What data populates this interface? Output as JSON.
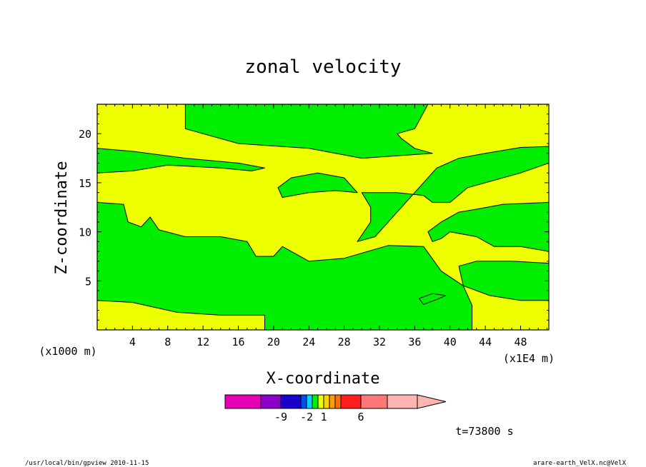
{
  "chart_data": {
    "type": "contour",
    "title": "zonal velocity",
    "xlabel": "X-coordinate",
    "ylabel": "Z-coordinate",
    "x_unit_note": "(x1E4 m)",
    "y_unit_note": "(x1000 m)",
    "xlim": [
      0,
      51.2
    ],
    "ylim": [
      0,
      23
    ],
    "x_ticks": [
      4,
      8,
      12,
      16,
      20,
      24,
      28,
      32,
      36,
      40,
      44,
      48
    ],
    "y_ticks": [
      5,
      10,
      15,
      20
    ],
    "colors": {
      "green": "#00ee00",
      "yellow": "#eeff00",
      "frame": "#000000"
    },
    "regions": [
      {
        "fill": "green",
        "points": [
          [
            10,
            23
          ],
          [
            37.5,
            23
          ],
          [
            36,
            20.5
          ],
          [
            34,
            20
          ],
          [
            34.5,
            19.5
          ],
          [
            36,
            18.5
          ],
          [
            38,
            18
          ],
          [
            30,
            17.5
          ],
          [
            24,
            18.5
          ],
          [
            16,
            19
          ],
          [
            10,
            20.5
          ]
        ]
      },
      {
        "fill": "green",
        "points": [
          [
            0,
            18.5
          ],
          [
            4,
            18.2
          ],
          [
            10,
            17.5
          ],
          [
            16,
            17
          ],
          [
            19,
            16.5
          ],
          [
            17.5,
            16.2
          ],
          [
            14,
            16.5
          ],
          [
            8,
            16.8
          ],
          [
            4,
            16.2
          ],
          [
            0,
            16
          ]
        ]
      },
      {
        "fill": "green",
        "points": [
          [
            20.5,
            14.5
          ],
          [
            22,
            15.5
          ],
          [
            25,
            16
          ],
          [
            28,
            15.5
          ],
          [
            29.5,
            14
          ],
          [
            27,
            14.2
          ],
          [
            24,
            14
          ],
          [
            21,
            13.5
          ]
        ]
      },
      {
        "fill": "green",
        "points": [
          [
            0,
            13
          ],
          [
            3,
            12.8
          ],
          [
            3.5,
            11
          ],
          [
            5,
            10.5
          ],
          [
            6,
            11.5
          ],
          [
            7,
            10.2
          ],
          [
            10,
            9.5
          ],
          [
            14,
            9.5
          ],
          [
            17,
            9
          ],
          [
            18,
            7.5
          ],
          [
            20,
            7.5
          ],
          [
            21,
            8.5
          ],
          [
            24,
            7
          ],
          [
            28,
            7.3
          ],
          [
            33,
            8.6
          ],
          [
            37,
            8.5
          ],
          [
            39,
            6
          ],
          [
            41.5,
            4.5
          ],
          [
            42.5,
            2.5
          ],
          [
            42.5,
            0
          ],
          [
            19,
            0
          ],
          [
            19,
            1.5
          ],
          [
            14,
            1.5
          ],
          [
            9,
            1.8
          ],
          [
            4,
            2.8
          ],
          [
            0,
            3
          ]
        ]
      },
      {
        "fill": "green",
        "points": [
          [
            30,
            14
          ],
          [
            34,
            14
          ],
          [
            37,
            13.7
          ],
          [
            38,
            13
          ],
          [
            40,
            13
          ],
          [
            42,
            14.5
          ],
          [
            48,
            16
          ],
          [
            51.2,
            17
          ],
          [
            51.2,
            18.7
          ],
          [
            48,
            18.6
          ],
          [
            44,
            18
          ],
          [
            41,
            17.5
          ],
          [
            38.5,
            16.5
          ],
          [
            36.5,
            14.5
          ],
          [
            35.5,
            13.5
          ],
          [
            34,
            12
          ],
          [
            31.5,
            9.5
          ],
          [
            29.5,
            9
          ],
          [
            31,
            11
          ],
          [
            31,
            12.5
          ]
        ]
      },
      {
        "fill": "green",
        "points": [
          [
            37.5,
            10
          ],
          [
            39,
            11
          ],
          [
            41,
            12
          ],
          [
            43,
            12.3
          ],
          [
            46,
            12.8
          ],
          [
            51.2,
            13
          ],
          [
            51.2,
            8
          ],
          [
            48,
            8.5
          ],
          [
            45,
            8.5
          ],
          [
            43,
            9.5
          ],
          [
            40,
            10
          ],
          [
            39,
            9.3
          ],
          [
            38,
            9
          ]
        ]
      },
      {
        "fill": "green",
        "points": [
          [
            41,
            6.5
          ],
          [
            43,
            7
          ],
          [
            47,
            7
          ],
          [
            51.2,
            6.8
          ],
          [
            51.2,
            3
          ],
          [
            48,
            3
          ],
          [
            44.5,
            3.5
          ],
          [
            41.5,
            4.5
          ]
        ]
      },
      {
        "fill": "green",
        "points": [
          [
            36.5,
            3.2
          ],
          [
            38,
            3.7
          ],
          [
            39.5,
            3.5
          ],
          [
            38.5,
            3.1
          ],
          [
            37,
            2.6
          ]
        ]
      }
    ],
    "colorbar": {
      "colors": [
        "#e600b4",
        "#8a00c8",
        "#1a00c8",
        "#0050f0",
        "#00d2ff",
        "#00ee00",
        "#eeff00",
        "#ffd200",
        "#ff9c00",
        "#ff7000",
        "#ff1e1e",
        "#ff7878",
        "#ffb4b4"
      ],
      "tick_labels": [
        "-9",
        "-2",
        "1",
        "6"
      ]
    },
    "time_label": "t=73800 s",
    "footer_left": "/usr/local/bin/gpview  2010-11-15",
    "footer_right": "arare-earth_VelX.nc@VelX"
  }
}
